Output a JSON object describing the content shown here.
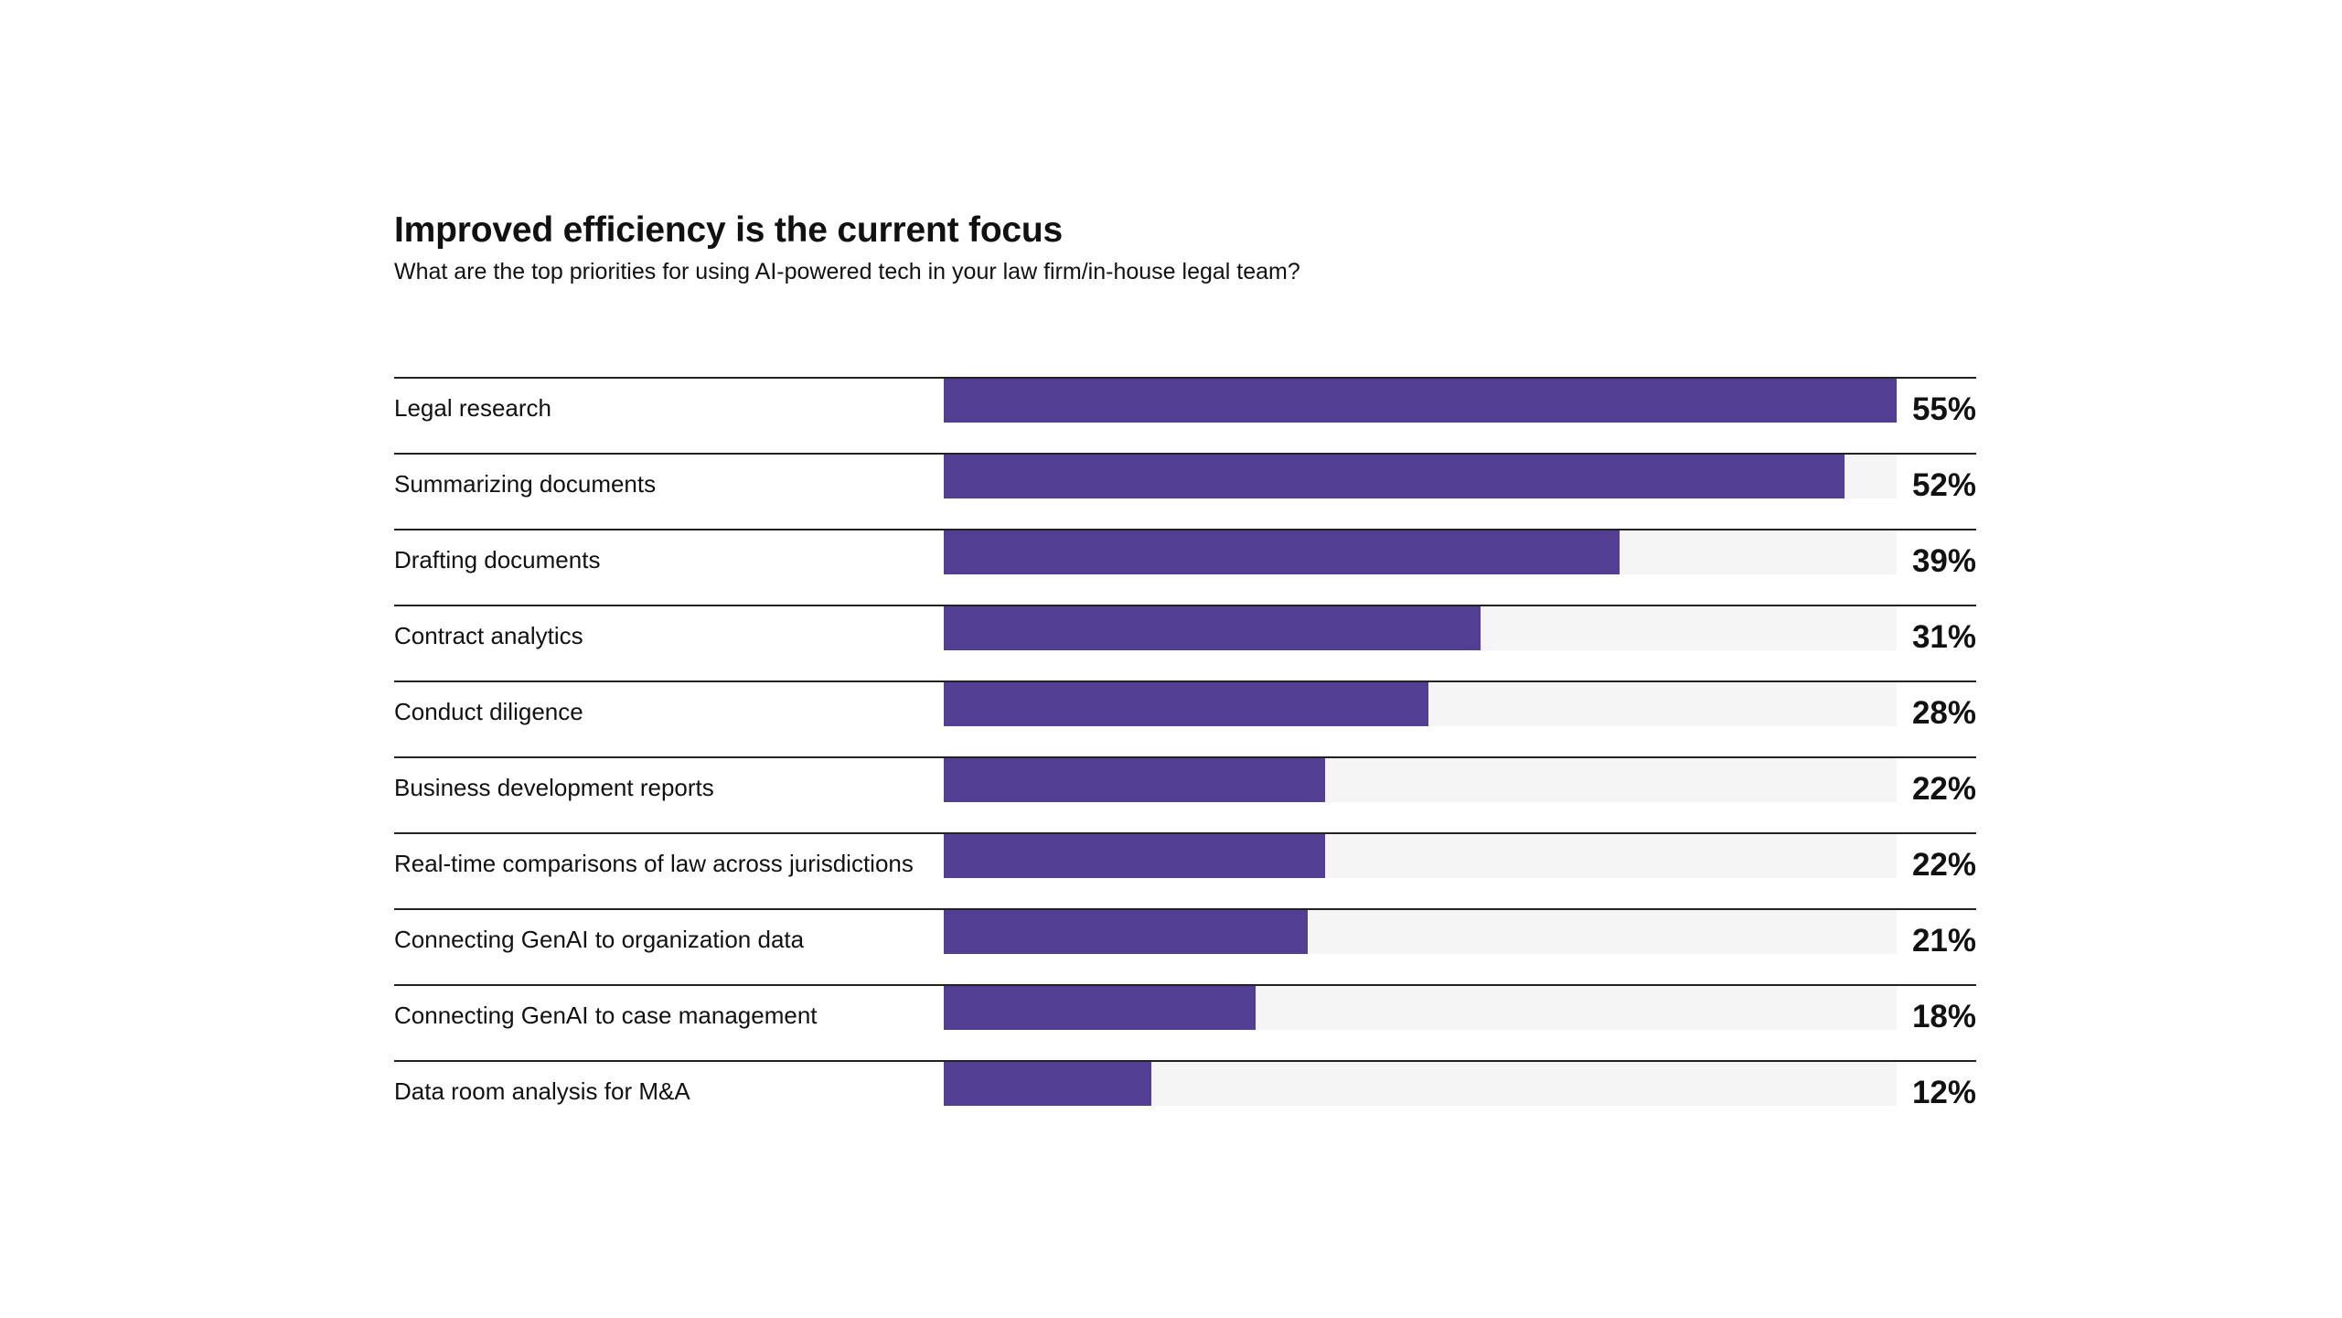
{
  "chart_data": {
    "type": "bar",
    "orientation": "horizontal",
    "title": "Improved efficiency is the current focus",
    "subtitle": "What are the top priorities for using AI-powered tech in your law firm/in-house legal team?",
    "xlim": [
      0,
      55
    ],
    "unit": "%",
    "bar_color": "#523f94",
    "track_color": "#f5f5f5",
    "grid": false,
    "categories": [
      "Legal research",
      "Summarizing documents",
      "Drafting documents",
      "Contract analytics",
      "Conduct diligence",
      "Business development reports",
      "Real-time comparisons of law across jurisdictions",
      "Connecting GenAI to organization data",
      "Connecting GenAI to case management",
      "Data room analysis for M&A"
    ],
    "values": [
      55,
      52,
      39,
      31,
      28,
      22,
      22,
      21,
      18,
      12
    ],
    "value_labels": [
      "55%",
      "52%",
      "39%",
      "31%",
      "28%",
      "22%",
      "22%",
      "21%",
      "18%",
      "12%"
    ]
  }
}
